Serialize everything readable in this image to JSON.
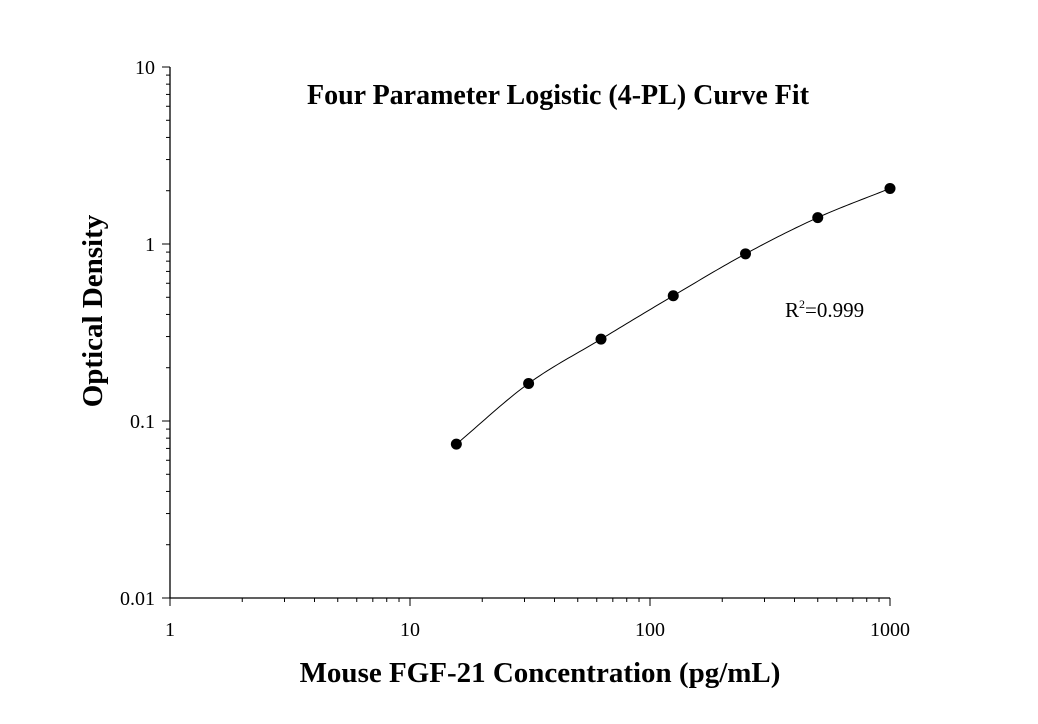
{
  "chart_data": {
    "type": "scatter",
    "title": "Four Parameter Logistic (4-PL) Curve Fit",
    "xlabel": "Mouse FGF-21 Concentration (pg/mL)",
    "ylabel": "Optical Density",
    "xscale": "log",
    "yscale": "log",
    "xlim": [
      1,
      1000
    ],
    "ylim": [
      0.01,
      10
    ],
    "x_ticks": [
      "1",
      "10",
      "100",
      "1000"
    ],
    "y_ticks": [
      "0.01",
      "0.1",
      "1",
      "10"
    ],
    "grid": false,
    "series": [
      {
        "x": [
          15.6,
          31.2,
          62.5,
          125,
          250,
          500,
          1000
        ],
        "y": [
          0.074,
          0.163,
          0.29,
          0.51,
          0.88,
          1.41,
          2.06
        ],
        "marker": "circle",
        "color": "#000000",
        "fit": "4-PL curve"
      }
    ],
    "annotations": [
      {
        "base": "R",
        "superscript": "2",
        "text": "=0.999"
      }
    ]
  }
}
